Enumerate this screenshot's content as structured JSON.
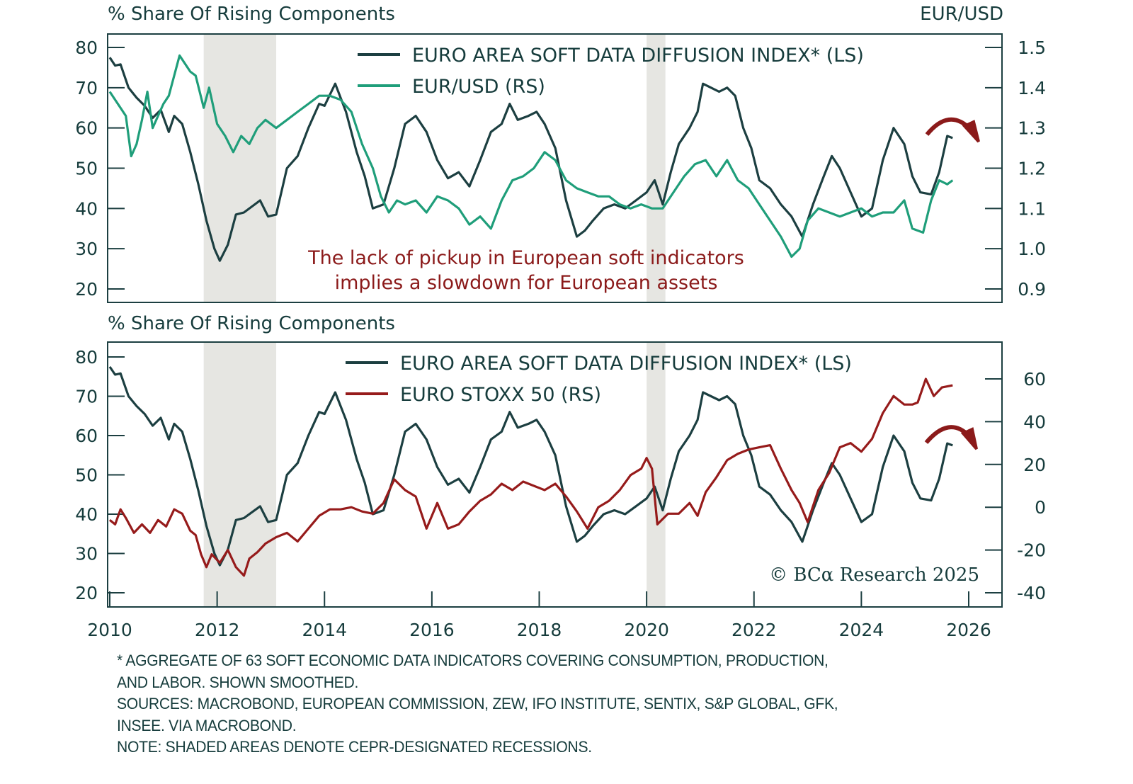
{
  "chart_data": [
    {
      "type": "line",
      "panel": "top",
      "left_axis_title": "% Share Of Rising Components",
      "right_axis_title": "EUR/USD",
      "ylim_left": [
        20,
        80
      ],
      "yticks_left": [
        "80",
        "70",
        "60",
        "50",
        "40",
        "30",
        "20"
      ],
      "ylim_right": [
        0.9,
        1.5
      ],
      "yticks_right": [
        "1.5",
        "1.4",
        "1.3",
        "1.2",
        "1.1",
        "1.0",
        "0.9"
      ],
      "legend_placement": "top-center",
      "annotation": [
        "The lack of pickup in European soft indicators",
        "implies a slowdown for European assets"
      ],
      "series": [
        {
          "name": "EURO AREA SOFT DATA DIFFUSION INDEX* (LS)",
          "axis": "left",
          "color": "#1c3f41",
          "x": [
            2010.0,
            2010.1,
            2010.2,
            2010.35,
            2010.5,
            2010.65,
            2010.8,
            2010.95,
            2011.1,
            2011.2,
            2011.35,
            2011.5,
            2011.65,
            2011.8,
            2011.95,
            2012.05,
            2012.2,
            2012.35,
            2012.5,
            2012.65,
            2012.8,
            2012.95,
            2013.1,
            2013.3,
            2013.5,
            2013.7,
            2013.9,
            2014.0,
            2014.2,
            2014.4,
            2014.6,
            2014.75,
            2014.9,
            2015.1,
            2015.3,
            2015.5,
            2015.7,
            2015.9,
            2016.1,
            2016.3,
            2016.5,
            2016.7,
            2016.9,
            2017.1,
            2017.3,
            2017.45,
            2017.6,
            2017.8,
            2017.95,
            2018.1,
            2018.3,
            2018.5,
            2018.7,
            2018.85,
            2019.0,
            2019.2,
            2019.4,
            2019.6,
            2019.8,
            2020.0,
            2020.15,
            2020.3,
            2020.45,
            2020.6,
            2020.8,
            2020.95,
            2021.05,
            2021.2,
            2021.35,
            2021.5,
            2021.65,
            2021.8,
            2021.95,
            2022.1,
            2022.3,
            2022.5,
            2022.7,
            2022.9,
            2023.1,
            2023.3,
            2023.45,
            2023.6,
            2023.8,
            2024.0,
            2024.2,
            2024.4,
            2024.6,
            2024.8,
            2024.95,
            2025.1,
            2025.3,
            2025.45,
            2025.6,
            2025.7
          ],
          "y": [
            77.5,
            75.5,
            75.8,
            70,
            67.5,
            65.5,
            62.5,
            64.5,
            59,
            63,
            61,
            54,
            46,
            37,
            30,
            27,
            31,
            38.5,
            39,
            40.5,
            42,
            38,
            38.5,
            50,
            53,
            60,
            66,
            65.5,
            71,
            64,
            54,
            48,
            40,
            41,
            50,
            61,
            63,
            59,
            52,
            47.5,
            49,
            45.5,
            52,
            59,
            61,
            66,
            62,
            63,
            64,
            61,
            55,
            42,
            33,
            34.5,
            37,
            40,
            41,
            40,
            42,
            44,
            47,
            41,
            49,
            56,
            60,
            64,
            71,
            70,
            69,
            70,
            68,
            60,
            55,
            47,
            45,
            41,
            38,
            33,
            41,
            48,
            53,
            50,
            44,
            38,
            40,
            52,
            60,
            56,
            48,
            44,
            43.5,
            49,
            58,
            57.5
          ]
        },
        {
          "name": "EUR/USD (RS)",
          "axis": "right",
          "color": "#1f9e7a",
          "x": [
            2010.0,
            2010.15,
            2010.3,
            2010.4,
            2010.5,
            2010.6,
            2010.7,
            2010.8,
            2010.9,
            2011.0,
            2011.1,
            2011.3,
            2011.5,
            2011.6,
            2011.75,
            2011.85,
            2012.0,
            2012.15,
            2012.3,
            2012.45,
            2012.6,
            2012.75,
            2012.9,
            2013.1,
            2013.3,
            2013.5,
            2013.7,
            2013.9,
            2014.1,
            2014.3,
            2014.5,
            2014.7,
            2014.9,
            2015.05,
            2015.2,
            2015.35,
            2015.5,
            2015.7,
            2015.9,
            2016.1,
            2016.3,
            2016.5,
            2016.7,
            2016.9,
            2017.1,
            2017.3,
            2017.5,
            2017.7,
            2017.9,
            2018.1,
            2018.3,
            2018.5,
            2018.7,
            2018.9,
            2019.1,
            2019.3,
            2019.5,
            2019.7,
            2019.9,
            2020.1,
            2020.3,
            2020.5,
            2020.7,
            2020.9,
            2021.1,
            2021.3,
            2021.5,
            2021.7,
            2021.9,
            2022.1,
            2022.3,
            2022.5,
            2022.7,
            2022.85,
            2023.0,
            2023.2,
            2023.4,
            2023.6,
            2023.8,
            2024.0,
            2024.2,
            2024.4,
            2024.6,
            2024.8,
            2024.95,
            2025.15,
            2025.3,
            2025.45,
            2025.6,
            2025.7
          ],
          "y": [
            1.39,
            1.36,
            1.33,
            1.23,
            1.26,
            1.32,
            1.39,
            1.3,
            1.33,
            1.36,
            1.38,
            1.48,
            1.44,
            1.43,
            1.35,
            1.4,
            1.31,
            1.28,
            1.24,
            1.28,
            1.26,
            1.3,
            1.32,
            1.3,
            1.32,
            1.34,
            1.36,
            1.38,
            1.38,
            1.37,
            1.34,
            1.26,
            1.2,
            1.13,
            1.09,
            1.12,
            1.11,
            1.12,
            1.09,
            1.13,
            1.12,
            1.1,
            1.06,
            1.08,
            1.05,
            1.12,
            1.17,
            1.18,
            1.2,
            1.24,
            1.22,
            1.17,
            1.15,
            1.14,
            1.13,
            1.13,
            1.11,
            1.1,
            1.11,
            1.1,
            1.1,
            1.14,
            1.18,
            1.21,
            1.22,
            1.18,
            1.22,
            1.17,
            1.15,
            1.11,
            1.07,
            1.03,
            0.98,
            1.0,
            1.07,
            1.1,
            1.09,
            1.08,
            1.09,
            1.1,
            1.08,
            1.09,
            1.09,
            1.12,
            1.05,
            1.04,
            1.12,
            1.17,
            1.16,
            1.17
          ]
        }
      ],
      "recessions": [
        [
          2011.75,
          2013.1
        ],
        [
          2020.0,
          2020.35
        ]
      ],
      "forecast_arrow": {
        "label": "turning-down-arrow",
        "color": "#8b1a1a"
      }
    },
    {
      "type": "line",
      "panel": "bottom",
      "left_axis_title": "% Share Of Rising Components",
      "ylim_left": [
        20,
        80
      ],
      "yticks_left": [
        "80",
        "70",
        "60",
        "50",
        "40",
        "30",
        "20"
      ],
      "ylim_right": [
        -40,
        60
      ],
      "yticks_right": [
        "60",
        "40",
        "20",
        "0",
        "-20",
        "-40"
      ],
      "legend_placement": "top-center",
      "xlim": [
        2010,
        2026
      ],
      "xticks": [
        "2010",
        "2012",
        "2014",
        "2016",
        "2018",
        "2020",
        "2022",
        "2024",
        "2026"
      ],
      "series": [
        {
          "name": "EURO AREA SOFT DATA DIFFUSION INDEX* (LS)",
          "axis": "left",
          "color": "#1c3f41",
          "same_as": "top.series.0"
        },
        {
          "name": "EURO STOXX 50 (RS)",
          "axis": "right",
          "color": "#961b1b",
          "x": [
            2010.0,
            2010.1,
            2010.2,
            2010.3,
            2010.45,
            2010.6,
            2010.75,
            2010.9,
            2011.05,
            2011.2,
            2011.35,
            2011.5,
            2011.6,
            2011.7,
            2011.8,
            2011.9,
            2012.05,
            2012.2,
            2012.35,
            2012.5,
            2012.6,
            2012.75,
            2012.9,
            2013.1,
            2013.3,
            2013.5,
            2013.7,
            2013.9,
            2014.1,
            2014.3,
            2014.5,
            2014.7,
            2014.9,
            2015.1,
            2015.3,
            2015.5,
            2015.7,
            2015.9,
            2016.1,
            2016.3,
            2016.5,
            2016.7,
            2016.9,
            2017.1,
            2017.3,
            2017.5,
            2017.7,
            2017.9,
            2018.1,
            2018.3,
            2018.5,
            2018.7,
            2018.9,
            2019.1,
            2019.3,
            2019.5,
            2019.7,
            2019.9,
            2020.0,
            2020.1,
            2020.2,
            2020.4,
            2020.6,
            2020.8,
            2020.95,
            2021.1,
            2021.3,
            2021.5,
            2021.7,
            2021.9,
            2022.1,
            2022.3,
            2022.5,
            2022.7,
            2022.85,
            2023.0,
            2023.2,
            2023.4,
            2023.6,
            2023.8,
            2024.0,
            2024.2,
            2024.4,
            2024.6,
            2024.8,
            2024.95,
            2025.05,
            2025.2,
            2025.35,
            2025.5,
            2025.7
          ],
          "y": [
            -6,
            -8,
            -1,
            -5,
            -12,
            -8,
            -12,
            -6,
            -9,
            -1,
            -3,
            -11,
            -13,
            -22,
            -28,
            -22,
            -26,
            -20,
            -28,
            -32,
            -24,
            -21,
            -17,
            -14,
            -12,
            -16,
            -10,
            -4,
            -1,
            -1,
            0,
            -2,
            -3,
            2,
            13,
            8,
            5,
            -10,
            2,
            -10,
            -8,
            -2,
            3,
            6,
            11,
            8,
            12,
            10,
            8,
            11,
            5,
            -2,
            -10,
            0,
            3,
            8,
            15,
            18,
            23,
            18,
            -8,
            -3,
            -3,
            2,
            -4,
            7,
            14,
            22,
            25,
            27,
            28,
            29,
            18,
            8,
            2,
            -7,
            8,
            16,
            28,
            30,
            26,
            32,
            44,
            52,
            48,
            48,
            49,
            60,
            52,
            56,
            57
          ]
        }
      ],
      "recessions": [
        [
          2011.75,
          2013.1
        ],
        [
          2020.0,
          2020.35
        ]
      ],
      "watermark": "© BCα Research 2025",
      "forecast_arrow": {
        "label": "turning-down-arrow",
        "color": "#8b1a1a"
      }
    }
  ],
  "footnotes": [
    "* AGGREGATE OF 63 SOFT ECONOMIC DATA INDICATORS COVERING CONSUMPTION, PRODUCTION,",
    "AND LABOR. SHOWN SMOOTHED.",
    "SOURCES: MACROBOND, EUROPEAN COMMISSION, ZEW, IFO INSTITUTE, SENTIX, S&P GLOBAL, GFK,",
    "INSEE. VIA MACROBOND.",
    "NOTE: SHADED AREAS DENOTE CEPR-DESIGNATED RECESSIONS."
  ],
  "colors": {
    "axis": "#1c3f41",
    "recession_shade": "#e6e6e2",
    "annotation": "#8b1a1a"
  }
}
